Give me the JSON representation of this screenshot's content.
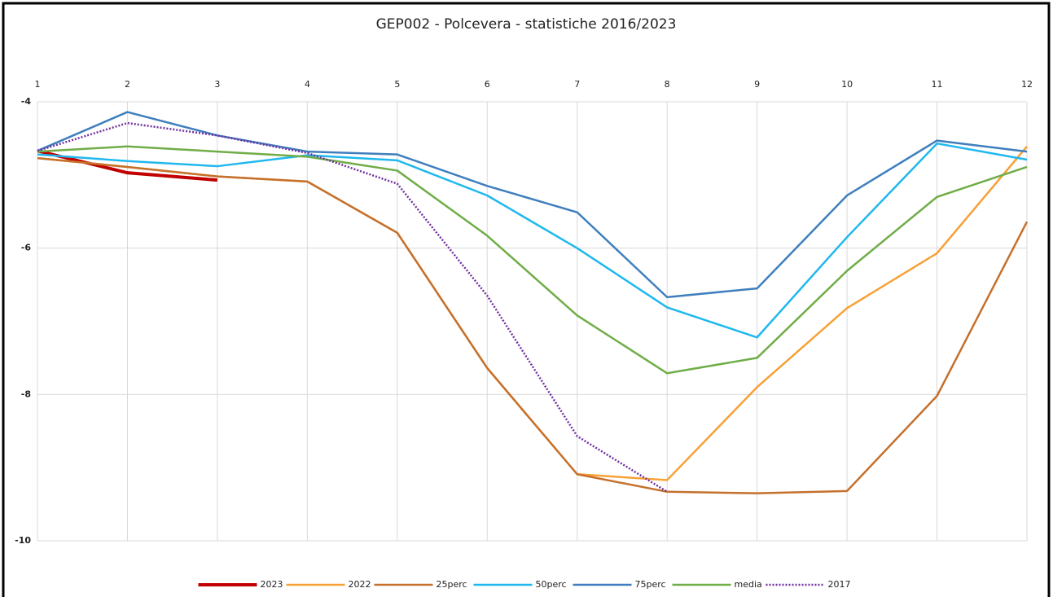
{
  "chart_data": {
    "type": "line",
    "title": "GEP002  - Polcevera - statistiche 2016/2023",
    "x": [
      1,
      2,
      3,
      4,
      5,
      6,
      7,
      8,
      9,
      10,
      11,
      12
    ],
    "xlim": [
      1,
      12
    ],
    "xticks": [
      1,
      2,
      3,
      4,
      5,
      6,
      7,
      8,
      9,
      10,
      11,
      12
    ],
    "ylim": [
      -10,
      -4
    ],
    "yticks": [
      -4,
      -6,
      -8,
      -10
    ],
    "grid": true,
    "legend": "bottom",
    "series": [
      {
        "name": "2023",
        "color": "#c00000",
        "linewidth": 4,
        "values": [
          -4.67,
          -4.97,
          -5.07,
          null,
          null,
          null,
          null,
          null,
          null,
          null,
          null,
          null
        ]
      },
      {
        "name": "2022",
        "color": "#f7a035",
        "linewidth": 2.5,
        "values": [
          -4.77,
          -4.89,
          -5.02,
          -5.09,
          -5.79,
          -7.64,
          -9.09,
          -9.17,
          -7.9,
          -6.82,
          -6.07,
          -4.61
        ]
      },
      {
        "name": "25perc",
        "color": "#c5702c",
        "linewidth": 2.5,
        "values": [
          -4.77,
          -4.89,
          -5.02,
          -5.09,
          -5.79,
          -7.64,
          -9.09,
          -9.33,
          -9.35,
          -9.32,
          -8.02,
          -5.64
        ]
      },
      {
        "name": "50perc",
        "color": "#1fb8ee",
        "linewidth": 2.5,
        "values": [
          -4.72,
          -4.81,
          -4.88,
          -4.73,
          -4.8,
          -5.28,
          -6.0,
          -6.81,
          -7.22,
          -5.85,
          -4.57,
          -4.79
        ]
      },
      {
        "name": "75perc",
        "color": "#3f7fbd",
        "linewidth": 2.5,
        "values": [
          -4.67,
          -4.14,
          -4.46,
          -4.68,
          -4.72,
          -5.15,
          -5.51,
          -6.67,
          -6.55,
          -5.28,
          -4.53,
          -4.68
        ]
      },
      {
        "name": "media",
        "color": "#70ad47",
        "linewidth": 2.5,
        "values": [
          -4.68,
          -4.61,
          -4.68,
          -4.75,
          -4.94,
          -5.83,
          -6.92,
          -7.71,
          -7.5,
          -6.31,
          -5.3,
          -4.89
        ]
      },
      {
        "name": "2017",
        "color": "#7030a0",
        "linewidth": 2.5,
        "dash": "dotted",
        "values": [
          -4.67,
          -4.29,
          -4.46,
          -4.7,
          -5.12,
          -6.65,
          -8.57,
          -9.33,
          null,
          null,
          null,
          null
        ]
      }
    ]
  }
}
